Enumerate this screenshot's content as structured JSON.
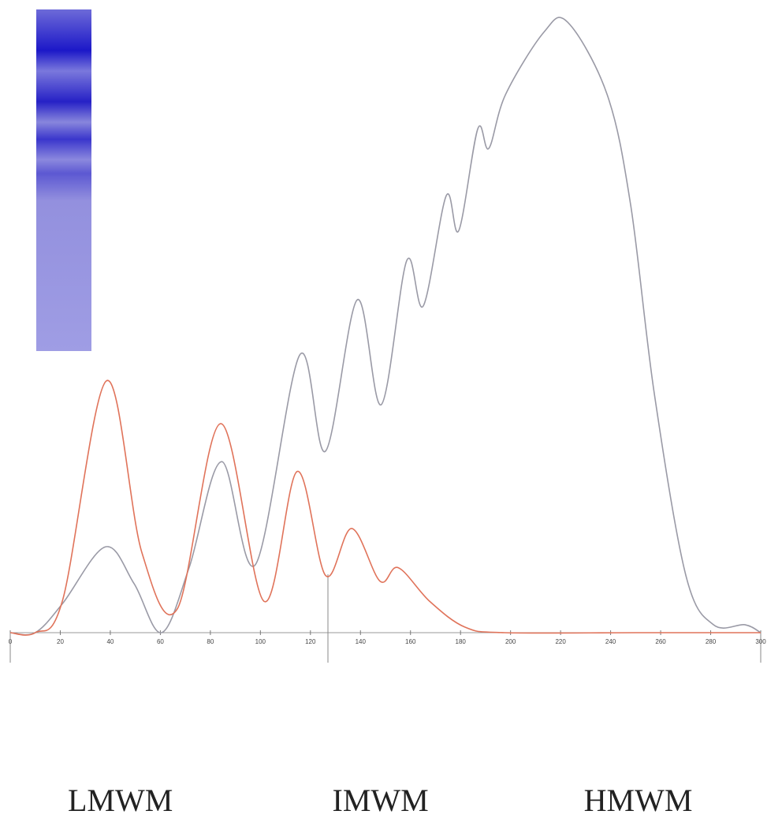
{
  "chart_data": {
    "type": "line",
    "x": [
      0,
      10,
      21,
      38,
      49.5,
      60.5,
      71.5,
      84.5,
      98,
      115.7,
      126,
      138.7,
      148.3,
      158.5,
      165.1,
      174.3,
      179.3,
      186.9,
      191.3,
      198,
      213.4,
      222.8,
      238.6,
      248,
      257.5,
      270.1,
      281.1,
      293.7,
      300
    ],
    "series": [
      {
        "color": "#9a9aa6",
        "values": [
          0,
          0,
          4.8,
          14,
          8,
          0,
          10.6,
          27.9,
          11.1,
          45.3,
          29.6,
          54.3,
          37.2,
          60.7,
          53.3,
          71.3,
          65.6,
          82.2,
          79,
          87.8,
          98,
          99.6,
          87.8,
          69.8,
          38.9,
          9.3,
          1.3,
          1.3,
          0
        ]
      },
      {
        "color": "#e0735a",
        "x": [
          0,
          10,
          21,
          38.5,
          52.6,
          66.8,
          84.1,
          101.5,
          114.7,
          126.1,
          136.5,
          147.8,
          155.1,
          167.7,
          181.8,
          197.6,
          250,
          300
        ],
        "values": [
          0,
          0,
          5.4,
          41.1,
          13.1,
          3.9,
          34.1,
          5.1,
          26.3,
          9.3,
          17,
          8.4,
          10.6,
          5.1,
          0.9,
          0,
          0,
          0
        ]
      }
    ],
    "xlim": [
      0,
      300
    ],
    "xticks": [
      0,
      20,
      40,
      60,
      80,
      100,
      120,
      140,
      160,
      180,
      200,
      220,
      240,
      260,
      280,
      300
    ],
    "ylim": [
      0,
      100
    ],
    "boundaries": [
      0,
      127,
      300
    ],
    "regions": [
      {
        "label": "LMWM",
        "center": 44
      },
      {
        "label": "IMWM",
        "center": 148
      },
      {
        "label": "HMWM",
        "center": 251
      }
    ]
  }
}
